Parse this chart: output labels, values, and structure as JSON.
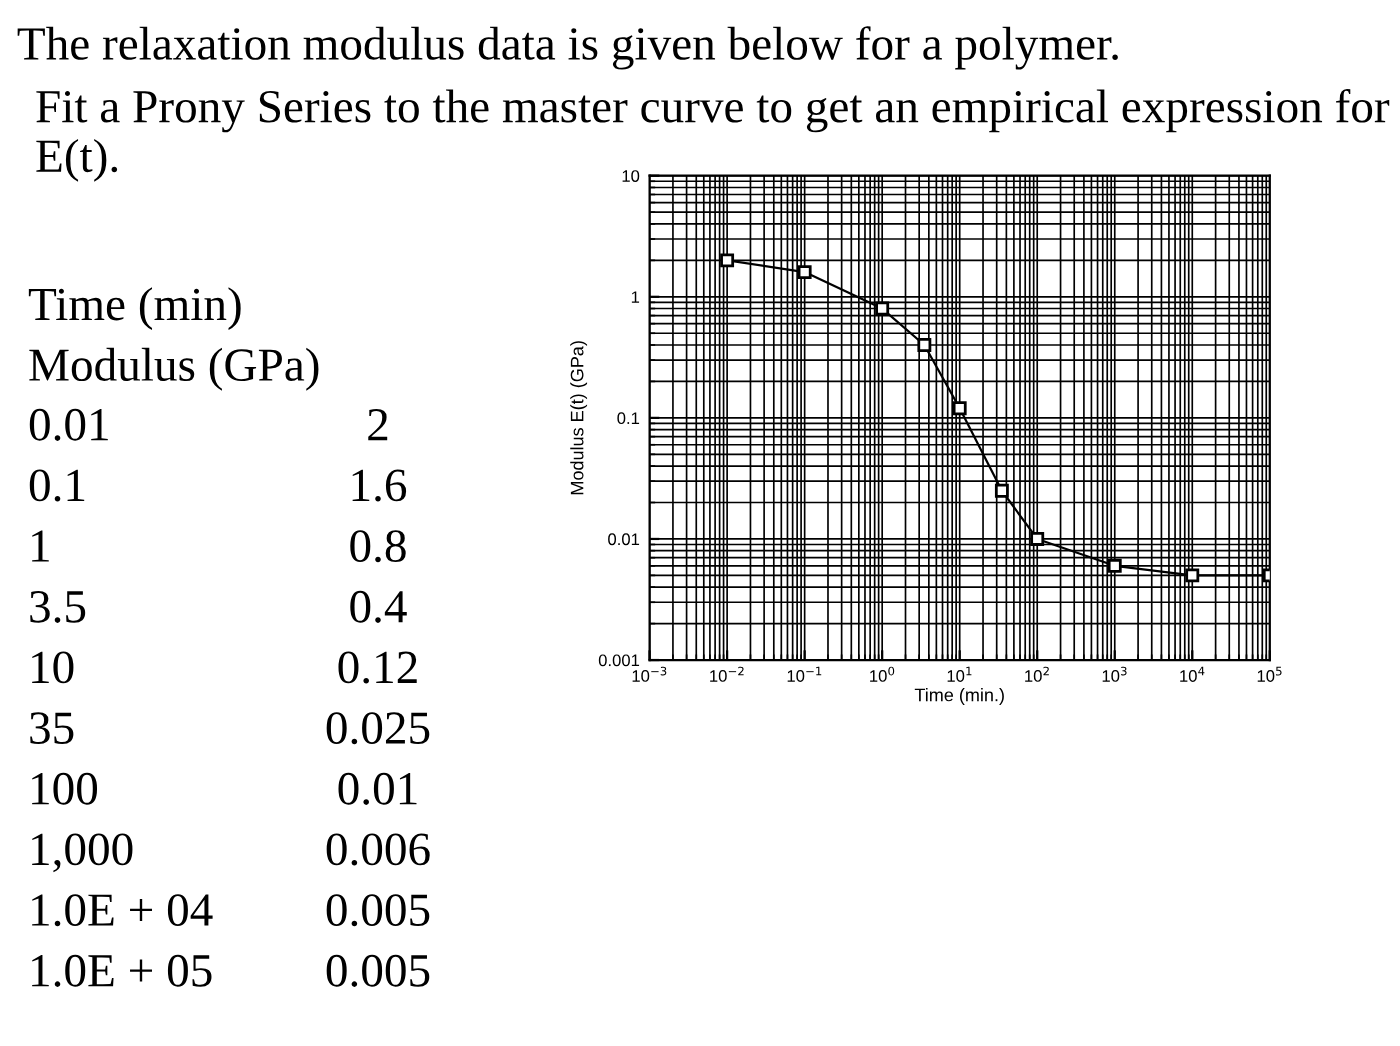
{
  "chart_data": {
    "type": "line",
    "title": "The relaxation modulus data is given below for a polymer.",
    "subtitle": "Fit a Prony Series to the master curve to get an empirical expression for E(t).",
    "xlabel": "Time (min.)",
    "ylabel": "Modulus E(t) (GPa)",
    "x": [
      0.01,
      0.1,
      1,
      3.5,
      10,
      35,
      100,
      1000,
      10000,
      100000
    ],
    "series": [
      {
        "color": "#000000",
        "values": [
          2,
          1.6,
          0.8,
          0.4,
          0.12,
          0.025,
          0.01,
          0.006,
          0.005,
          0.005
        ]
      }
    ],
    "log": "xy",
    "marker": "square",
    "line_style": "solid",
    "grid": true,
    "xlim": [
      0.001,
      100000
    ],
    "ylim": [
      0.001,
      10
    ],
    "xticks": [
      {
        "value": 0.001,
        "label": "10$^{−3}$"
      },
      {
        "value": 0.01,
        "label": "10$^{−2}$"
      },
      {
        "value": 0.1,
        "label": "10$^{−1}$"
      },
      {
        "value": 1,
        "label": "10$^{0}$"
      },
      {
        "value": 10,
        "label": "10$^{1}$"
      },
      {
        "value": 100,
        "label": "10$^{2}$"
      },
      {
        "value": 1000,
        "label": "10$^{3}$"
      },
      {
        "value": 10000,
        "label": "10$^{4}$"
      },
      {
        "value": 100000,
        "label": "10$^{5}$"
      }
    ],
    "yticks": [
      {
        "value": 0.001,
        "label": "0.001"
      },
      {
        "value": 0.01,
        "label": "0.01"
      },
      {
        "value": 0.1,
        "label": "0.1"
      },
      1,
      10
    ],
    "annotations": [
      "Time (min)",
      "Modulus (GPa)",
      "0.01",
      "2",
      "0.1",
      "1.6",
      "1",
      "0.8",
      "3.5",
      "0.4",
      "10",
      "0.12",
      "35",
      "0.025",
      "100",
      "0.01",
      "1,000",
      "0.006",
      "1.0E + 04",
      "0.005",
      "1.0E + 05",
      "0.005"
    ]
  }
}
